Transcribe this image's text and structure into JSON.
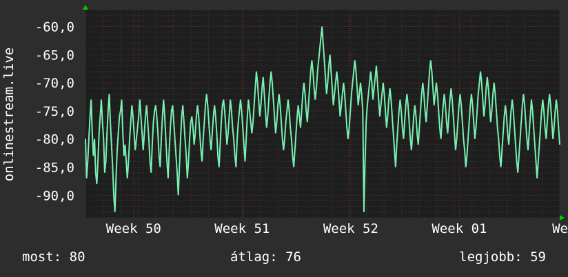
{
  "colors": {
    "background": "#2d2d2d",
    "plot_background": "#1e1e1e",
    "series": "#78f0b0",
    "grid_major": "#7a2a2a",
    "grid_minor": "#3a3a3a",
    "axis_arrow": "#00cc00",
    "text": "#ffffff"
  },
  "stats": {
    "now": "most: 80",
    "avg": "átlag: 76",
    "best": "legjobb: 59"
  },
  "chart_data": {
    "type": "line",
    "ylabel": "onlinestream.live",
    "ylim": [
      -94,
      -57
    ],
    "yticks": [
      {
        "value": -60,
        "label": "-60,0"
      },
      {
        "value": -65,
        "label": "-65,0"
      },
      {
        "value": -70,
        "label": "-70,0"
      },
      {
        "value": -75,
        "label": "-75,0"
      },
      {
        "value": -80,
        "label": "-80,0"
      },
      {
        "value": -85,
        "label": "-85,0"
      },
      {
        "value": -90,
        "label": "-90,0"
      }
    ],
    "xrange": [
      0,
      690
    ],
    "xticks": [
      {
        "value": 70,
        "label": "Week 50"
      },
      {
        "value": 228,
        "label": "Week 51"
      },
      {
        "value": 386,
        "label": "Week 52"
      },
      {
        "value": 544,
        "label": "Week 01"
      },
      {
        "value": 702,
        "label": "Week"
      }
    ],
    "grid": true,
    "series": [
      {
        "values": [
          -80,
          -87,
          -84,
          -80,
          -76,
          -73,
          -79,
          -83,
          -80,
          -86,
          -88,
          -84,
          -79,
          -76,
          -73,
          -77,
          -80,
          -86,
          -84,
          -79,
          -75,
          -72,
          -77,
          -81,
          -85,
          -90,
          -93,
          -87,
          -82,
          -79,
          -76,
          -75,
          -73,
          -79,
          -83,
          -81,
          -84,
          -87,
          -84,
          -80,
          -77,
          -74,
          -76,
          -79,
          -82,
          -80,
          -78,
          -76,
          -73,
          -76,
          -79,
          -82,
          -79,
          -76,
          -74,
          -77,
          -80,
          -84,
          -86,
          -81,
          -77,
          -75,
          -74,
          -76,
          -79,
          -83,
          -85,
          -80,
          -76,
          -73,
          -76,
          -80,
          -84,
          -87,
          -82,
          -78,
          -75,
          -74,
          -77,
          -80,
          -83,
          -86,
          -90,
          -85,
          -80,
          -76,
          -74,
          -77,
          -80,
          -83,
          -87,
          -84,
          -80,
          -77,
          -76,
          -78,
          -81,
          -79,
          -76,
          -74,
          -76,
          -79,
          -82,
          -84,
          -80,
          -77,
          -74,
          -72,
          -74,
          -77,
          -80,
          -82,
          -79,
          -76,
          -74,
          -76,
          -79,
          -83,
          -85,
          -81,
          -77,
          -74,
          -73,
          -75,
          -78,
          -81,
          -79,
          -76,
          -73,
          -75,
          -78,
          -80,
          -83,
          -85,
          -80,
          -77,
          -75,
          -73,
          -75,
          -78,
          -81,
          -84,
          -80,
          -76,
          -73,
          -75,
          -77,
          -79,
          -77,
          -74,
          -71,
          -68,
          -70,
          -73,
          -76,
          -74,
          -71,
          -69,
          -72,
          -75,
          -78,
          -76,
          -73,
          -70,
          -68,
          -70,
          -73,
          -76,
          -79,
          -77,
          -74,
          -72,
          -74,
          -77,
          -80,
          -82,
          -80,
          -77,
          -75,
          -73,
          -75,
          -78,
          -80,
          -83,
          -85,
          -82,
          -79,
          -76,
          -74,
          -76,
          -78,
          -75,
          -72,
          -70,
          -72,
          -75,
          -77,
          -74,
          -71,
          -68,
          -66,
          -68,
          -71,
          -73,
          -71,
          -68,
          -66,
          -64,
          -62,
          -60,
          -63,
          -66,
          -69,
          -72,
          -70,
          -67,
          -65,
          -68,
          -71,
          -74,
          -72,
          -70,
          -68,
          -70,
          -73,
          -76,
          -74,
          -72,
          -70,
          -72,
          -75,
          -78,
          -80,
          -78,
          -75,
          -72,
          -70,
          -68,
          -66,
          -68,
          -71,
          -74,
          -72,
          -70,
          -72,
          -75,
          -93,
          -84,
          -77,
          -74,
          -72,
          -70,
          -68,
          -70,
          -73,
          -71,
          -69,
          -67,
          -70,
          -73,
          -76,
          -74,
          -72,
          -70,
          -72,
          -75,
          -78,
          -76,
          -73,
          -71,
          -73,
          -76,
          -79,
          -82,
          -85,
          -81,
          -78,
          -75,
          -73,
          -75,
          -78,
          -80,
          -77,
          -74,
          -72,
          -74,
          -77,
          -80,
          -82,
          -79,
          -76,
          -74,
          -76,
          -79,
          -81,
          -78,
          -75,
          -72,
          -70,
          -72,
          -75,
          -77,
          -74,
          -71,
          -68,
          -66,
          -68,
          -71,
          -74,
          -72,
          -70,
          -72,
          -75,
          -78,
          -80,
          -77,
          -74,
          -72,
          -74,
          -77,
          -79,
          -76,
          -73,
          -71,
          -73,
          -76,
          -79,
          -82,
          -80,
          -77,
          -74,
          -72,
          -74,
          -77,
          -80,
          -82,
          -85,
          -83,
          -80,
          -77,
          -74,
          -72,
          -74,
          -77,
          -80,
          -78,
          -75,
          -72,
          -70,
          -68,
          -70,
          -73,
          -76,
          -74,
          -71,
          -69,
          -71,
          -74,
          -77,
          -75,
          -72,
          -70,
          -72,
          -75,
          -78,
          -80,
          -83,
          -85,
          -82,
          -79,
          -76,
          -74,
          -76,
          -79,
          -81,
          -78,
          -75,
          -73,
          -75,
          -78,
          -81,
          -84,
          -86,
          -83,
          -80,
          -77,
          -74,
          -72,
          -74,
          -77,
          -80,
          -82,
          -79,
          -76,
          -73,
          -75,
          -78,
          -81,
          -84,
          -87,
          -84,
          -81,
          -78,
          -75,
          -73,
          -75,
          -78,
          -80,
          -77,
          -74,
          -72,
          -74,
          -77,
          -80,
          -78,
          -75,
          -73,
          -75,
          -78,
          -81
        ]
      }
    ]
  }
}
